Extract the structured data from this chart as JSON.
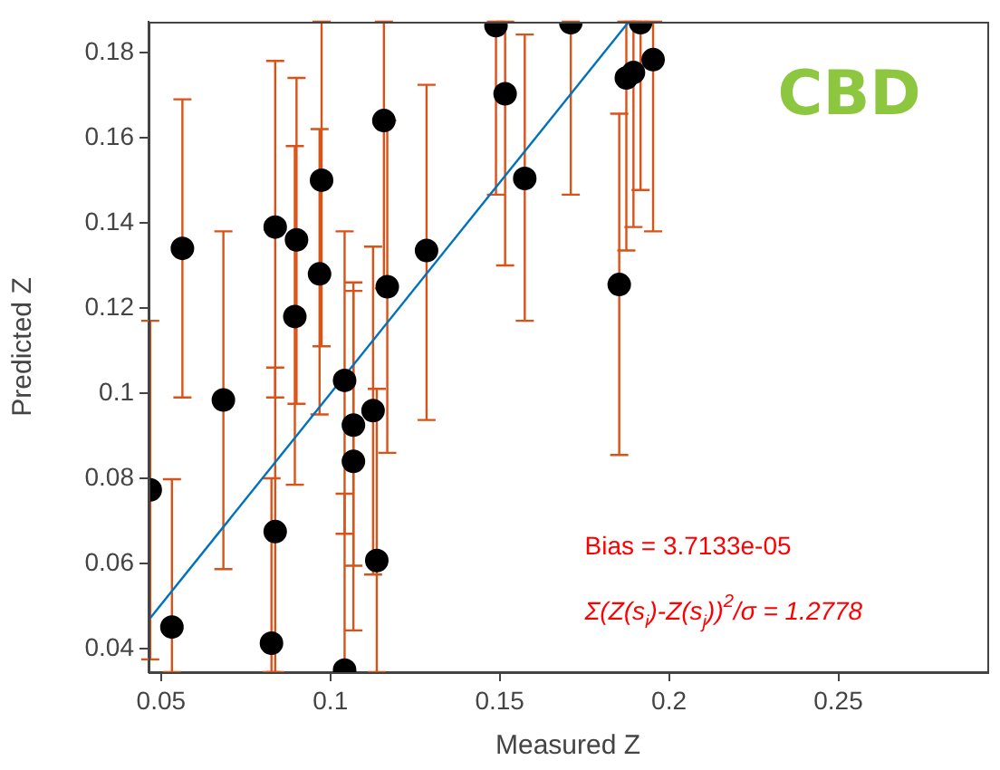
{
  "chart_data": {
    "type": "scatter",
    "title": "CBD",
    "xlabel": "Measured Z",
    "ylabel": "Predicted Z",
    "annotations": [
      "Bias = 3.7133e-05",
      "Σ(Z(s$_{i}$)-Z(s$_{j}$))$^{2}$/σ = 1.2778"
    ],
    "xlim": [
      0.0463,
      0.294
    ],
    "ylim": [
      0.0345,
      0.1872
    ],
    "xticks": [
      0.05,
      0.1,
      0.15,
      0.2,
      0.25
    ],
    "yticks": [
      0.04,
      0.06,
      0.08,
      0.1,
      0.12,
      0.14,
      0.16,
      0.18
    ],
    "grid": false,
    "legend": false,
    "series": [
      {
        "color": "#000000",
        "marker": "circle",
        "x": [
          0.0468,
          0.0532,
          0.0563,
          0.0684,
          0.0837,
          0.0837,
          0.0826,
          0.09,
          0.0895,
          0.0974,
          0.0968,
          0.1042,
          0.1042,
          0.1068,
          0.1068,
          0.1126,
          0.1137,
          0.1158,
          0.1168,
          0.1284,
          0.1489,
          0.1516,
          0.1574,
          0.171,
          0.1853,
          0.1874,
          0.1895,
          0.1916,
          0.1953
        ],
        "values": [
          0.0773,
          0.0451,
          0.134,
          0.0984,
          0.139,
          0.0675,
          0.0413,
          0.136,
          0.118,
          0.15,
          0.128,
          0.103,
          0.035,
          0.0925,
          0.084,
          0.0959,
          0.0607,
          0.164,
          0.125,
          0.1335,
          0.1863,
          0.1703,
          0.1504,
          0.187,
          0.1255,
          0.174,
          0.1753,
          0.187,
          0.1783
        ],
        "errors": [
          [
            0.0375,
            0.117
          ],
          [
            0.0345,
            0.0798
          ],
          [
            0.099,
            0.169
          ],
          [
            0.0587,
            0.138
          ],
          [
            0.099,
            0.178
          ],
          [
            0.0345,
            0.106
          ],
          [
            0.0345,
            0.08
          ],
          [
            0.0975,
            0.174
          ],
          [
            0.0785,
            0.158
          ],
          [
            0.111,
            0.1872
          ],
          [
            0.095,
            0.162
          ],
          [
            0.067,
            0.138
          ],
          [
            0.0345,
            0.0764
          ],
          [
            0.0595,
            0.126
          ],
          [
            0.0443,
            0.124
          ],
          [
            0.0574,
            0.1344
          ],
          [
            0.0345,
            0.101
          ],
          [
            0.1246,
            0.1872
          ],
          0.039,
          [
            0.0937,
            0.1724
          ],
          [
            0.1466,
            0.1872
          ],
          [
            0.13,
            0.1872
          ],
          [
            0.117,
            0.1842
          ],
          [
            0.1466,
            0.1872
          ],
          [
            0.0855,
            0.1656
          ],
          [
            0.1335,
            0.1872
          ],
          [
            0.139,
            0.1872
          ],
          [
            0.1477,
            0.1872
          ],
          [
            0.138,
            0.1872
          ]
        ]
      },
      {
        "type": "line",
        "color": "#0072bd",
        "x": [
          0.0468,
          0.1879
        ],
        "values": [
          0.0472,
          0.187
        ]
      }
    ]
  }
}
